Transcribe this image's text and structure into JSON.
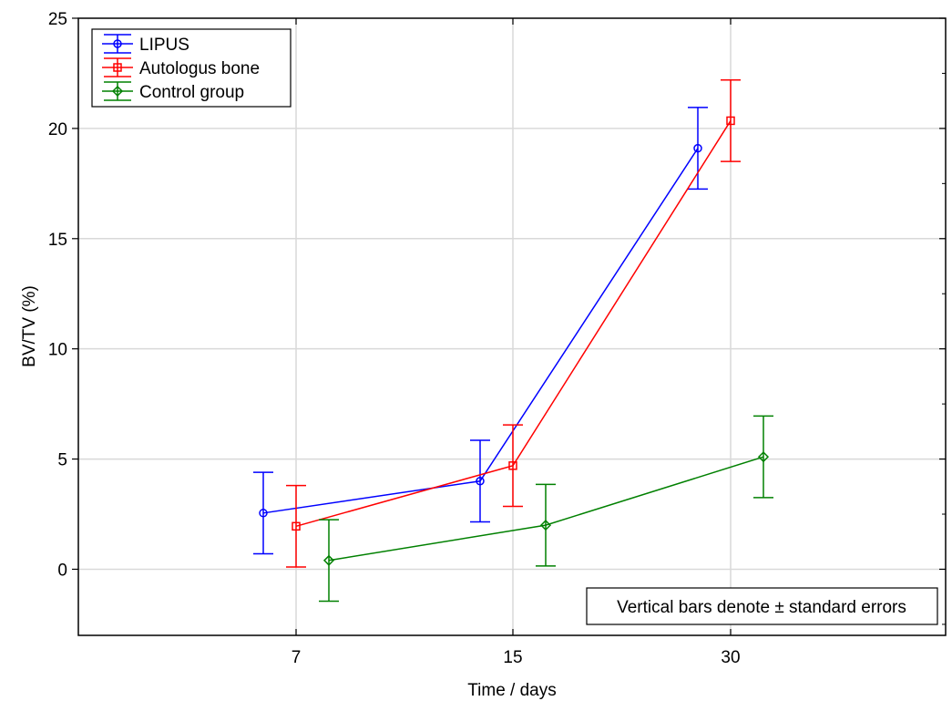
{
  "chart_data": {
    "type": "line",
    "categories": [
      "7",
      "15",
      "30"
    ],
    "xlabel": "Time / days",
    "ylabel": "BV/TV (%)",
    "ylim": [
      -3,
      25
    ],
    "yticks": [
      0,
      5,
      10,
      15,
      20,
      25
    ],
    "grid": true,
    "legend_position": "top-left",
    "note": "Vertical bars denote ± standard errors",
    "series": [
      {
        "name": "LIPUS",
        "color": "#0000ff",
        "marker": "circle",
        "values": [
          2.55,
          4.0,
          19.1
        ],
        "errors": [
          1.85,
          1.85,
          1.85
        ]
      },
      {
        "name": "Autologus bone",
        "color": "#ff0000",
        "marker": "square",
        "values": [
          1.95,
          4.7,
          20.35
        ],
        "errors": [
          1.85,
          1.85,
          1.85
        ]
      },
      {
        "name": "Control group",
        "color": "#008000",
        "marker": "diamond",
        "values": [
          0.4,
          2.0,
          5.1
        ],
        "errors": [
          1.85,
          1.85,
          1.85
        ]
      }
    ]
  }
}
